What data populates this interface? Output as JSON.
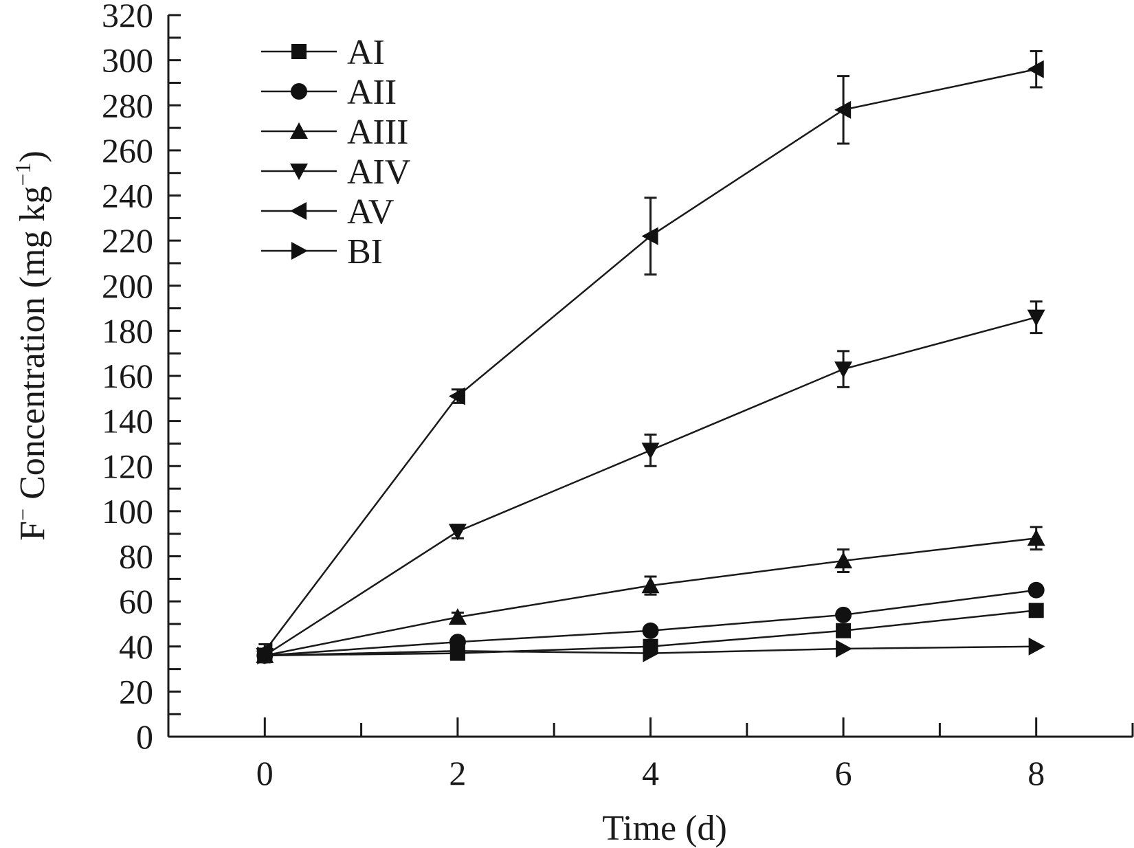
{
  "chart_data": {
    "type": "line",
    "xlabel": "Time (d)",
    "ylabel": {
      "prefix": "F",
      "prefix_sup": "−",
      "main": " Concentration (mg kg",
      "sup": "−1",
      "suffix": ")"
    },
    "xlim": [
      -1,
      9
    ],
    "ylim": [
      0,
      320
    ],
    "x_ticks": [
      0,
      2,
      4,
      6,
      8
    ],
    "x_tick_labels": [
      "0",
      "2",
      "4",
      "6",
      "8"
    ],
    "x_minor_ticks": [
      1,
      3,
      5,
      7,
      9
    ],
    "y_ticks": [
      0,
      20,
      40,
      60,
      80,
      100,
      120,
      140,
      160,
      180,
      200,
      220,
      240,
      260,
      280,
      300,
      320
    ],
    "y_tick_labels": [
      "0",
      "20",
      "40",
      "60",
      "80",
      "100",
      "120",
      "140",
      "160",
      "180",
      "200",
      "220",
      "240",
      "260",
      "280",
      "300",
      "320"
    ],
    "grid": false,
    "legend_position": "top-left",
    "x": [
      0,
      2,
      4,
      6,
      8
    ],
    "series": [
      {
        "name": "AI",
        "marker": "square",
        "values": [
          36,
          37,
          40,
          47,
          56
        ],
        "errors": [
          0,
          0,
          2,
          2,
          2
        ]
      },
      {
        "name": "AII",
        "marker": "circle",
        "values": [
          36,
          42,
          47,
          54,
          65
        ],
        "errors": [
          0,
          0,
          0,
          2,
          2
        ]
      },
      {
        "name": "AIII",
        "marker": "triangle-up",
        "values": [
          36,
          53,
          67,
          78,
          88
        ],
        "errors": [
          3,
          2,
          4,
          5,
          5
        ]
      },
      {
        "name": "AIV",
        "marker": "triangle-down",
        "values": [
          36,
          91,
          127,
          163,
          186
        ],
        "errors": [
          3,
          3,
          7,
          8,
          7
        ]
      },
      {
        "name": "AV",
        "marker": "triangle-left",
        "values": [
          38,
          151,
          222,
          278,
          296
        ],
        "errors": [
          3,
          3,
          17,
          15,
          8
        ]
      },
      {
        "name": "BI",
        "marker": "triangle-right",
        "values": [
          36,
          38,
          37,
          39,
          40
        ],
        "errors": [
          0,
          0,
          0,
          0,
          0
        ]
      }
    ]
  }
}
